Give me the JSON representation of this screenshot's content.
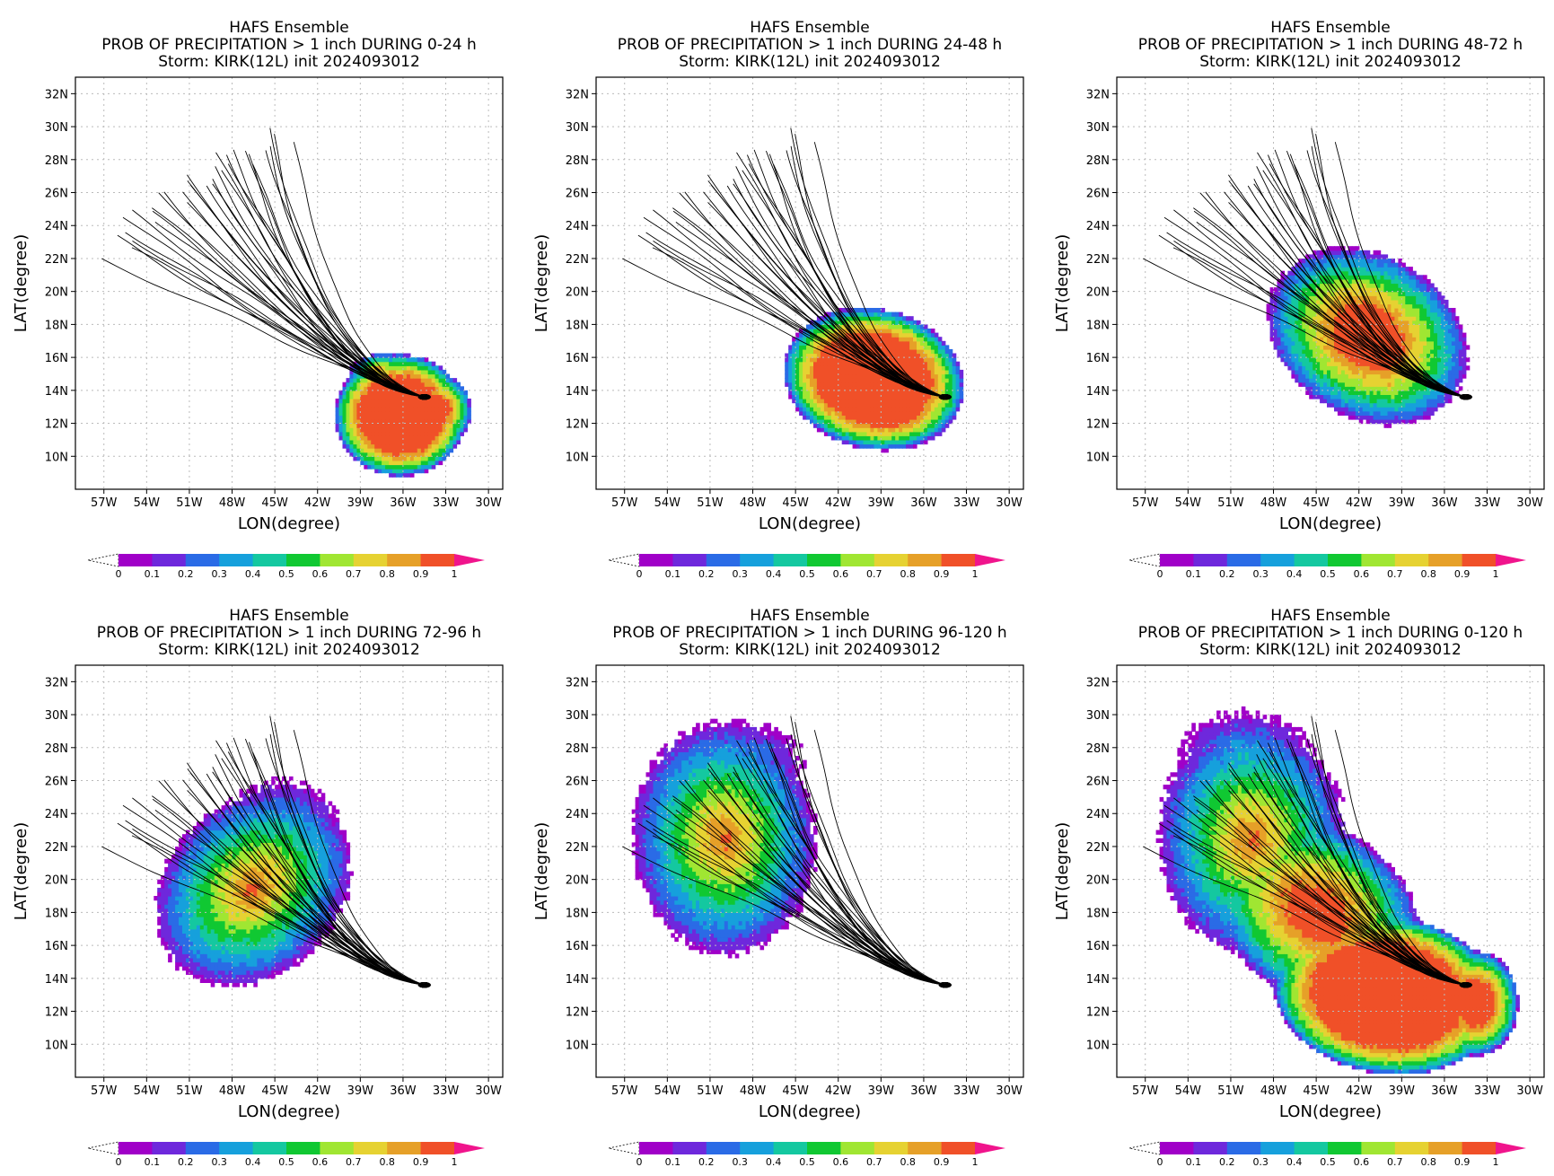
{
  "page": {
    "background": "#ffffff"
  },
  "panels": [
    {
      "title": "HAFS Ensemble",
      "subtitle": "PROB OF PRECIPITATION > 1 inch DURING  0-24 h",
      "storm": "Storm: KIRK(12L) init 2024093012",
      "mode": 0
    },
    {
      "title": "HAFS Ensemble",
      "subtitle": "PROB OF PRECIPITATION > 1 inch DURING 24-48 h",
      "storm": "Storm: KIRK(12L) init 2024093012",
      "mode": 1
    },
    {
      "title": "HAFS Ensemble",
      "subtitle": "PROB OF PRECIPITATION > 1 inch DURING 48-72 h",
      "storm": "Storm: KIRK(12L) init 2024093012",
      "mode": 2
    },
    {
      "title": "HAFS Ensemble",
      "subtitle": "PROB OF PRECIPITATION > 1 inch DURING 72-96 h",
      "storm": "Storm: KIRK(12L) init 2024093012",
      "mode": 3
    },
    {
      "title": "HAFS Ensemble",
      "subtitle": "PROB OF PRECIPITATION > 1 inch DURING 96-120 h",
      "storm": "Storm: KIRK(12L) init 2024093012",
      "mode": 4
    },
    {
      "title": "HAFS Ensemble",
      "subtitle": "PROB OF PRECIPITATION > 1 inch DURING 0-120 h",
      "storm": "Storm: KIRK(12L) init 2024093012",
      "mode": 5
    }
  ],
  "axes": {
    "xlabel": "LON(degree)",
    "ylabel": "LAT(degree)",
    "lon_range": [
      -59,
      -29
    ],
    "lat_range": [
      8,
      33
    ],
    "xticks": [
      "57W",
      "54W",
      "51W",
      "48W",
      "45W",
      "42W",
      "39W",
      "36W",
      "33W",
      "30W"
    ],
    "xtick_values": [
      -57,
      -54,
      -51,
      -48,
      -45,
      -42,
      -39,
      -36,
      -33,
      -30
    ],
    "yticks": [
      "10N",
      "12N",
      "14N",
      "16N",
      "18N",
      "20N",
      "22N",
      "24N",
      "26N",
      "28N",
      "30N",
      "32N"
    ],
    "ytick_values": [
      10,
      12,
      14,
      16,
      18,
      20,
      22,
      24,
      26,
      28,
      30,
      32
    ],
    "grid": true
  },
  "colorbar": {
    "labels": [
      "0",
      "0.1",
      "0.2",
      "0.3",
      "0.4",
      "0.5",
      "0.6",
      "0.7",
      "0.8",
      "0.9",
      "1"
    ],
    "colors": [
      "#a000c8",
      "#6e28dc",
      "#2a6be6",
      "#16a0dc",
      "#14c8a0",
      "#10c832",
      "#a0e632",
      "#e6d232",
      "#e6a028",
      "#f05028"
    ],
    "under_color": "#ffffff",
    "over_color": "#f0148c"
  },
  "track": {
    "start": [
      -34.5,
      13.6
    ],
    "color": "#000000"
  }
}
